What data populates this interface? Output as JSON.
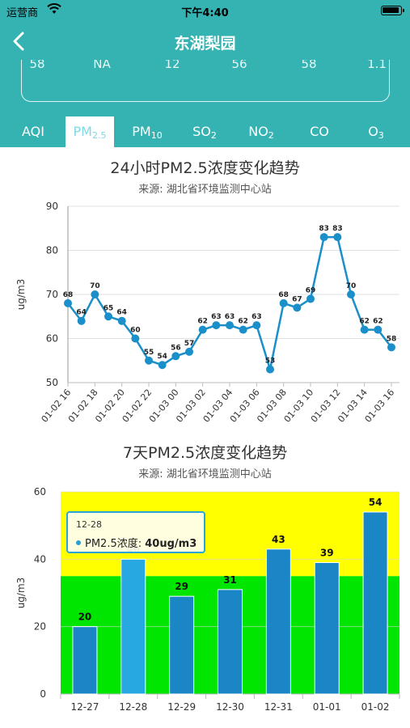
{
  "status_bar": {
    "carrier": "运营商",
    "time": "下午4:40"
  },
  "nav": {
    "title": "东湖梨园"
  },
  "summary_values": [
    "58",
    "NA",
    "12",
    "56",
    "58",
    "1.1"
  ],
  "tabs": [
    {
      "label": "AQI",
      "sub": ""
    },
    {
      "label": "PM",
      "sub": "2.5"
    },
    {
      "label": "PM",
      "sub": "10"
    },
    {
      "label": "SO",
      "sub": "2"
    },
    {
      "label": "NO",
      "sub": "2"
    },
    {
      "label": "CO",
      "sub": ""
    },
    {
      "label": "O",
      "sub": "3"
    }
  ],
  "active_tab": 1,
  "chart1": {
    "title": "24小时PM2.5浓度变化趋势",
    "source": "来源: 湖北省环境监测中心站"
  },
  "chart2": {
    "title": "7天PM2.5浓度变化趋势",
    "source": "来源: 湖北省环境监测中心站"
  },
  "tooltip": {
    "date": "12-28",
    "label": "PM2.5浓度: ",
    "value": "40ug/m3"
  },
  "chart_data": [
    {
      "type": "line",
      "title": "24小时PM2.5浓度变化趋势",
      "ylabel": "ug/m3",
      "ylim": [
        50,
        90
      ],
      "yticks": [
        50,
        60,
        70,
        80,
        90
      ],
      "grid": true,
      "x_tick_labels": [
        "01-02 16",
        "01-02 18",
        "01-02 20",
        "01-02 22",
        "01-03 00",
        "01-03 02",
        "01-03 04",
        "01-03 06",
        "01-03 08",
        "01-03 10",
        "01-03 12",
        "01-03 14",
        "01-03 16"
      ],
      "values": [
        68,
        64,
        70,
        65,
        64,
        60,
        55,
        54,
        56,
        57,
        62,
        63,
        63,
        62,
        63,
        53,
        68,
        67,
        69,
        83,
        83,
        70,
        62,
        62,
        58
      ],
      "color": "#1a8fc9"
    },
    {
      "type": "bar",
      "title": "7天PM2.5浓度变化趋势",
      "ylabel": "ug/m3",
      "ylim": [
        0,
        60
      ],
      "yticks": [
        0,
        20,
        40,
        60
      ],
      "categories": [
        "12-27",
        "12-28",
        "12-29",
        "12-30",
        "12-31",
        "01-01",
        "01-02"
      ],
      "values": [
        20,
        40,
        29,
        31,
        43,
        39,
        54
      ],
      "highlighted": "12-28",
      "bands": [
        {
          "from": 0,
          "to": 35,
          "color": "#00e600"
        },
        {
          "from": 35,
          "to": 60,
          "color": "#ffff00"
        }
      ],
      "bar_color": "#1a86c6",
      "highlight_color": "#27a8e0"
    }
  ]
}
